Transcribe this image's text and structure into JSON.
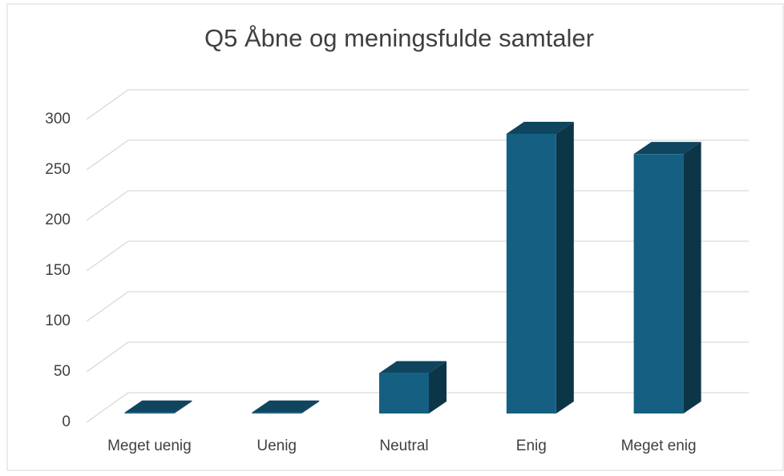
{
  "chart_data": {
    "type": "bar3d",
    "title": "Q5 Åbne og meningsfulde samtaler",
    "categories": [
      "Meget uenig",
      "Uenig",
      "Neutral",
      "Enig",
      "Meget enig"
    ],
    "values": [
      1,
      1,
      40,
      277,
      257
    ],
    "color": "#156082",
    "ylim": [
      0,
      300
    ],
    "yticks": [
      0,
      50,
      100,
      150,
      200,
      250,
      300
    ],
    "grid": true
  }
}
